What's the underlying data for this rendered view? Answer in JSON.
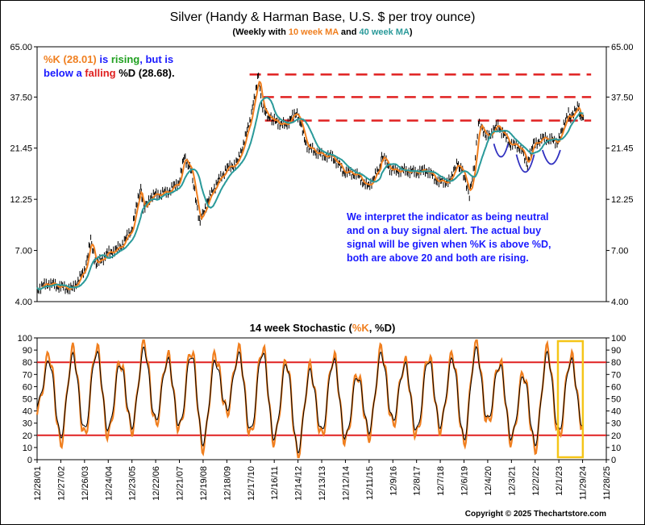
{
  "header": {
    "title": "Silver (Handy & Harman Base, U.S. $ per troy ounce)",
    "subtitle_prefix": "(Weekly with ",
    "subtitle_ma10": "10 week MA",
    "subtitle_and": " and ",
    "subtitle_ma40": "40 week MA",
    "subtitle_suffix": ")"
  },
  "annotation_top": {
    "k_part": "%K (28.01)",
    "is_part": " is ",
    "rising_part": "rising",
    "but_part": ", but is",
    "below_part": "below a ",
    "falling_part": "falling",
    "d_part": " %D (28.68)."
  },
  "annotation_box": {
    "lines": [
      "We interpret the indicator as being neutral",
      "and on a buy signal alert.  The actual buy",
      "signal will be given when %K is above %D,",
      "both are above 20 and both are rising."
    ]
  },
  "lower_title": {
    "prefix": "14 week Stochastic (",
    "k": "%K",
    "sep": ", ",
    "d": "%D",
    "suffix": ")"
  },
  "copyright": "Copyright © 2025 Thechartstore.com",
  "colors": {
    "price": "#000000",
    "ma10": "#f07f1f",
    "ma40": "#2a9a9a",
    "resistance": "#e02020",
    "stoch_k": "#f07f1f",
    "stoch_d": "#000000",
    "threshold": "#e02020",
    "highlight_box": "#f5c518",
    "pattern_arcs": "#3030c0",
    "text_blue": "#1a1aff",
    "text_green": "#20a020",
    "text_red": "#e02020"
  },
  "chart_data": [
    {
      "type": "line",
      "ylabel": "",
      "y_scale": "log",
      "yticks": [
        "4.00",
        "7.00",
        "12.25",
        "21.45",
        "37.50",
        "65.00"
      ],
      "ylim": [
        4.0,
        65.0
      ],
      "x_range": [
        "2001-12-28",
        "2025-12-31"
      ],
      "series": [
        {
          "name": "Price",
          "x": [
            "2001-12-28",
            "2002-06-28",
            "2002-12-27",
            "2003-06-27",
            "2003-12-26",
            "2004-04-02",
            "2004-06-25",
            "2004-12-24",
            "2005-06-24",
            "2005-12-23",
            "2006-05-12",
            "2006-06-16",
            "2006-12-22",
            "2007-06-22",
            "2007-12-21",
            "2008-03-14",
            "2008-06-20",
            "2008-10-31",
            "2008-12-19",
            "2009-06-19",
            "2009-12-18",
            "2010-06-18",
            "2010-12-17",
            "2011-04-29",
            "2011-06-17",
            "2011-09-30",
            "2011-12-16",
            "2012-06-15",
            "2012-12-14",
            "2013-04-19",
            "2013-06-14",
            "2013-12-13",
            "2014-06-13",
            "2014-12-12",
            "2015-06-12",
            "2015-12-11",
            "2016-06-10",
            "2016-07-08",
            "2016-12-09",
            "2017-06-09",
            "2017-12-08",
            "2018-06-08",
            "2018-12-07",
            "2019-06-07",
            "2019-09-06",
            "2019-12-06",
            "2020-03-20",
            "2020-06-05",
            "2020-08-07",
            "2020-12-04",
            "2021-06-04",
            "2021-12-03",
            "2022-06-03",
            "2022-09-02",
            "2022-12-02",
            "2023-06-02",
            "2023-12-01",
            "2024-05-24",
            "2024-06-28",
            "2024-10-25",
            "2024-11-29",
            "2025-01-10"
          ],
          "values": [
            4.6,
            4.9,
            4.7,
            4.6,
            5.6,
            7.8,
            6.0,
            6.8,
            7.2,
            8.8,
            14.0,
            11.0,
            12.9,
            13.2,
            14.8,
            19.5,
            17.0,
            9.5,
            10.5,
            14.0,
            17.0,
            18.5,
            28.5,
            47.5,
            35.0,
            30.5,
            29.0,
            27.5,
            32.0,
            23.0,
            21.5,
            20.0,
            19.5,
            16.5,
            16.2,
            14.0,
            17.2,
            19.8,
            16.8,
            16.8,
            16.5,
            16.8,
            14.8,
            15.0,
            18.0,
            16.8,
            12.5,
            17.8,
            28.0,
            24.0,
            27.5,
            22.5,
            21.5,
            18.0,
            22.5,
            24.0,
            23.0,
            31.5,
            29.5,
            33.5,
            30.5,
            30.0
          ]
        }
      ],
      "resistance_levels": [
        48.0,
        37.5,
        29.0
      ]
    },
    {
      "type": "line",
      "ylabel": "",
      "ylim": [
        0,
        100
      ],
      "yticks": [
        0,
        10,
        20,
        30,
        40,
        50,
        60,
        70,
        80,
        90,
        100
      ],
      "thresholds": [
        20,
        80
      ],
      "xticks": [
        "12/28/01",
        "12/27/02",
        "12/26/03",
        "12/24/04",
        "12/23/05",
        "12/22/06",
        "12/21/07",
        "12/19/08",
        "12/18/09",
        "12/17/10",
        "12/16/11",
        "12/14/12",
        "12/13/13",
        "12/12/14",
        "12/11/15",
        "12/9/16",
        "12/8/17",
        "12/7/18",
        "12/6/19",
        "12/4/20",
        "12/3/21",
        "12/2/22",
        "12/1/23",
        "11/29/24",
        "11/28/25"
      ],
      "series": [
        {
          "name": "%K",
          "x": [
            2001.99,
            2002.5,
            2002.99,
            2003.5,
            2003.99,
            2004.5,
            2004.99,
            2005.5,
            2005.99,
            2006.5,
            2006.99,
            2007.5,
            2007.99,
            2008.5,
            2008.99,
            2009.5,
            2009.99,
            2010.5,
            2010.99,
            2011.5,
            2011.99,
            2012.5,
            2012.99,
            2013.5,
            2013.99,
            2014.5,
            2014.99,
            2015.5,
            2015.99,
            2016.5,
            2016.99,
            2017.5,
            2017.99,
            2018.5,
            2018.99,
            2019.5,
            2019.99,
            2020.5,
            2020.99,
            2021.5,
            2021.99,
            2022.5,
            2022.99,
            2023.5,
            2023.99,
            2024.5,
            2024.99
          ],
          "values": [
            40,
            85,
            15,
            90,
            20,
            92,
            20,
            80,
            25,
            95,
            30,
            85,
            25,
            90,
            10,
            85,
            40,
            90,
            20,
            92,
            15,
            80,
            5,
            75,
            20,
            85,
            15,
            70,
            20,
            90,
            30,
            80,
            20,
            85,
            25,
            85,
            15,
            95,
            30,
            80,
            15,
            70,
            10,
            90,
            20,
            85,
            28
          ]
        },
        {
          "name": "%D",
          "x": [
            2001.99,
            2002.5,
            2002.99,
            2003.5,
            2003.99,
            2004.5,
            2004.99,
            2005.5,
            2005.99,
            2006.5,
            2006.99,
            2007.5,
            2007.99,
            2008.5,
            2008.99,
            2009.5,
            2009.99,
            2010.5,
            2010.99,
            2011.5,
            2011.99,
            2012.5,
            2012.99,
            2013.5,
            2013.99,
            2014.5,
            2014.99,
            2015.5,
            2015.99,
            2016.5,
            2016.99,
            2017.5,
            2017.99,
            2018.5,
            2018.99,
            2019.5,
            2019.99,
            2020.5,
            2020.99,
            2021.5,
            2021.99,
            2022.5,
            2022.99,
            2023.5,
            2023.99,
            2024.5,
            2024.99
          ],
          "values": [
            45,
            80,
            20,
            85,
            25,
            88,
            25,
            78,
            28,
            90,
            33,
            82,
            28,
            86,
            14,
            80,
            42,
            86,
            24,
            88,
            18,
            78,
            8,
            72,
            24,
            82,
            18,
            68,
            24,
            86,
            33,
            78,
            24,
            82,
            28,
            82,
            18,
            90,
            33,
            78,
            18,
            68,
            14,
            86,
            24,
            82,
            28.68
          ]
        }
      ]
    }
  ]
}
